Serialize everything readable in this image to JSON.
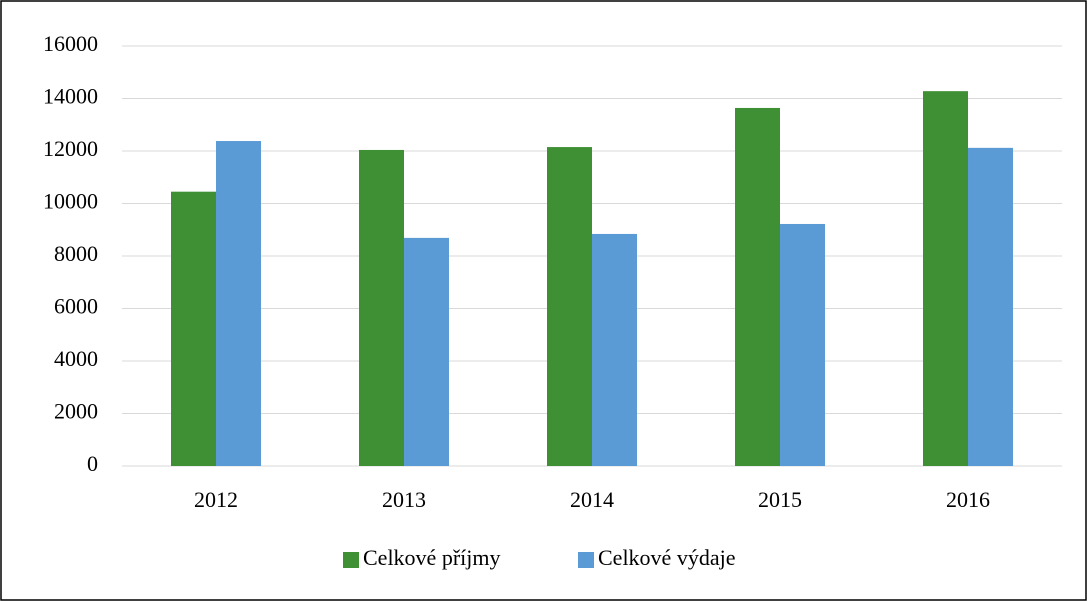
{
  "chart_data": {
    "type": "bar",
    "categories": [
      "2012",
      "2013",
      "2014",
      "2015",
      "2016"
    ],
    "series": [
      {
        "name": "Celkové příjmy",
        "color": "#3f8f35",
        "values": [
          10450,
          12040,
          12150,
          13640,
          14280
        ]
      },
      {
        "name": "Celkové výdaje",
        "color": "#5b9bd5",
        "values": [
          12380,
          8690,
          8840,
          9220,
          12120
        ]
      }
    ],
    "ylim": [
      0,
      16000
    ],
    "yticks": [
      0,
      2000,
      4000,
      6000,
      8000,
      10000,
      12000,
      14000,
      16000
    ],
    "grid": true,
    "legend": "bottom"
  }
}
